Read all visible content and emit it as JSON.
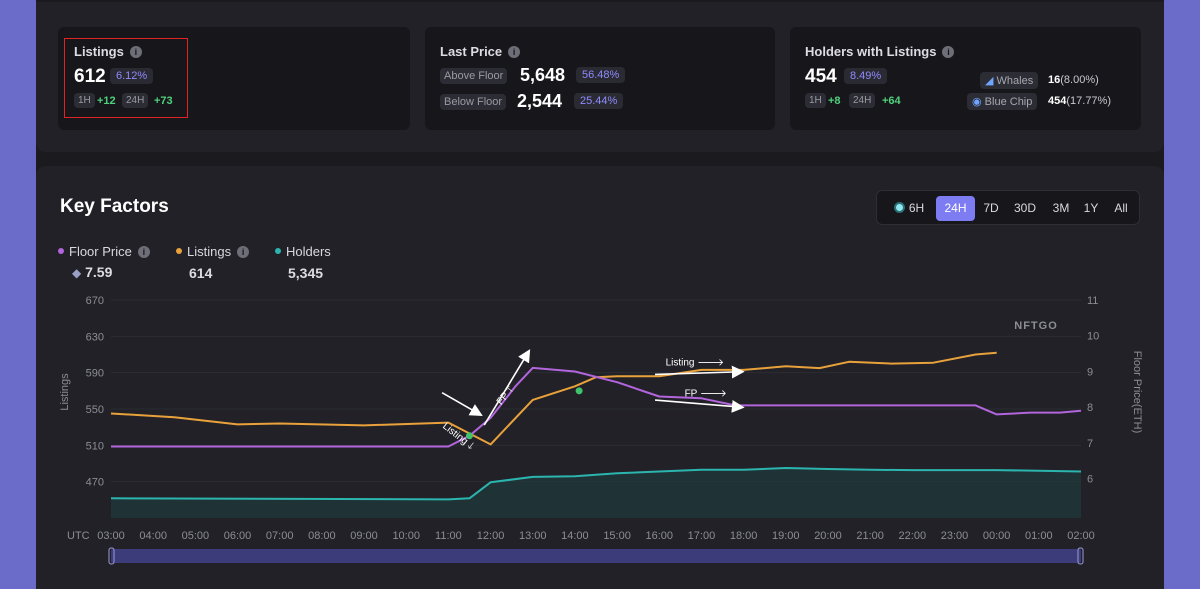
{
  "listings_card": {
    "title": "Listings",
    "value": "612",
    "pct": "6.12%",
    "tag_1h": "1H",
    "delta_1h": "+12",
    "tag_24h": "24H",
    "delta_24h": "+73"
  },
  "last_price_card": {
    "title": "Last Price",
    "above_label": "Above Floor",
    "above_value": "5,648",
    "above_pct": "56.48%",
    "below_label": "Below Floor",
    "below_value": "2,544",
    "below_pct": "25.44%"
  },
  "holders_card": {
    "title": "Holders with Listings",
    "value": "454",
    "pct": "8.49%",
    "tag_1h": "1H",
    "delta_1h": "+8",
    "tag_24h": "24H",
    "delta_24h": "+64",
    "whales_label": "Whales",
    "whales_value": "16",
    "whales_pct": "(8.00%)",
    "bluechip_label": "Blue Chip",
    "bluechip_value": "454",
    "bluechip_pct": "(17.77%)"
  },
  "key_factors": {
    "title": "Key Factors",
    "ranges": [
      "6H",
      "24H",
      "7D",
      "30D",
      "3M",
      "1Y",
      "All"
    ],
    "active_range": "24H",
    "legend": {
      "floor_label": "Floor Price",
      "floor_value": "7.59",
      "listings_label": "Listings",
      "listings_value": "614",
      "holders_label": "Holders",
      "holders_value": "5,345"
    },
    "watermark": "NFTGO"
  },
  "colors": {
    "floor": "#b265dc",
    "listings": "#e9a23b",
    "holders": "#2bb5ae",
    "accent": "#7d7cf2",
    "up": "#4fd07c"
  },
  "chart_data": {
    "type": "line",
    "x_prefix": "UTC",
    "x": [
      "03:00",
      "04:00",
      "05:00",
      "06:00",
      "07:00",
      "08:00",
      "09:00",
      "10:00",
      "11:00",
      "12:00",
      "13:00",
      "14:00",
      "15:00",
      "16:00",
      "17:00",
      "18:00",
      "19:00",
      "20:00",
      "21:00",
      "22:00",
      "23:00",
      "00:00",
      "01:00",
      "02:00"
    ],
    "ylabel_left": "Listings",
    "ylabel_right": "Floor Price(ETH)",
    "y_left_ticks": [
      670,
      630,
      590,
      550,
      510,
      470
    ],
    "y_right_ticks": [
      11,
      10,
      9,
      8,
      7,
      6
    ],
    "ylim_left": [
      430,
      670
    ],
    "ylim_right": [
      4.9,
      11
    ],
    "grid": true,
    "series": [
      {
        "name": "Listings",
        "axis": "left",
        "points": [
          [
            0,
            545
          ],
          [
            1.5,
            541
          ],
          [
            3,
            533
          ],
          [
            4,
            534
          ],
          [
            6,
            532
          ],
          [
            8,
            535
          ],
          [
            9,
            511
          ],
          [
            10,
            560
          ],
          [
            11,
            575
          ],
          [
            11.5,
            585
          ],
          [
            12,
            586
          ],
          [
            13,
            586
          ],
          [
            14,
            593
          ],
          [
            15,
            593
          ],
          [
            16,
            597
          ],
          [
            16.8,
            595
          ],
          [
            17.5,
            602
          ],
          [
            18.5,
            600
          ],
          [
            19.5,
            601
          ],
          [
            20.5,
            610
          ],
          [
            21,
            612
          ]
        ]
      },
      {
        "name": "Floor Price",
        "axis": "right",
        "points": [
          [
            0,
            6.9
          ],
          [
            8,
            6.9
          ],
          [
            8.5,
            7.2
          ],
          [
            9,
            7.7
          ],
          [
            9.6,
            8.6
          ],
          [
            10,
            9.1
          ],
          [
            11,
            9
          ],
          [
            12,
            8.7
          ],
          [
            13,
            8.3
          ],
          [
            14,
            8.25
          ],
          [
            14.8,
            8.05
          ],
          [
            20.5,
            8.05
          ],
          [
            21,
            7.8
          ],
          [
            21.8,
            7.85
          ],
          [
            22.5,
            7.85
          ],
          [
            23,
            7.9
          ]
        ]
      },
      {
        "name": "Holders",
        "axis": "right",
        "points": [
          [
            0,
            5.45
          ],
          [
            8,
            5.42
          ],
          [
            8.5,
            5.45
          ],
          [
            9,
            5.9
          ],
          [
            10,
            6.05
          ],
          [
            11,
            6.07
          ],
          [
            12,
            6.15
          ],
          [
            14,
            6.25
          ],
          [
            15,
            6.25
          ],
          [
            16,
            6.3
          ],
          [
            17,
            6.27
          ],
          [
            18,
            6.25
          ],
          [
            19,
            6.24
          ],
          [
            20,
            6.24
          ],
          [
            21,
            6.24
          ],
          [
            22,
            6.22
          ],
          [
            23,
            6.2
          ]
        ]
      }
    ],
    "annotations": [
      {
        "text": "Listing 🡓",
        "x": 8.3,
        "from": 568,
        "to": 542
      },
      {
        "text": "FP 🡑",
        "x": 10.8,
        "from": 7.5,
        "to": 9.2
      },
      {
        "text": "Listing 🡒",
        "x": 15.3,
        "from": 590,
        "to": 590
      },
      {
        "text": "FP 🡒",
        "x": 15.3,
        "from": 8.3,
        "to": 8.1
      }
    ]
  }
}
